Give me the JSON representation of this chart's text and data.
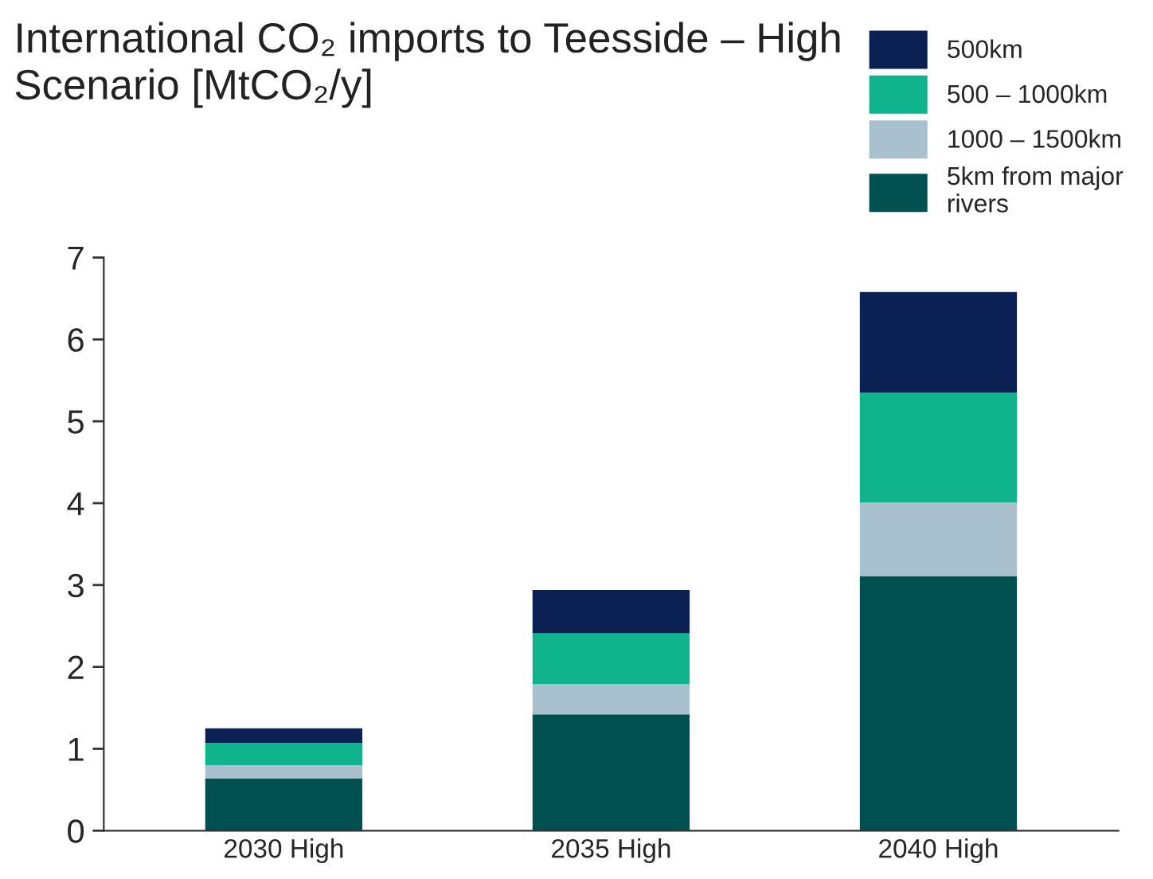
{
  "chart_data": {
    "type": "bar",
    "title": "International CO₂ imports to Teesside – High Scenario [MtCO₂/y]",
    "categories": [
      "2030 High",
      "2035 High",
      "2040 High"
    ],
    "stacked": true,
    "series": [
      {
        "name": "5km from major rivers",
        "color": "#005052",
        "values": [
          0.64,
          1.42,
          3.11
        ]
      },
      {
        "name": "1000 – 1500km",
        "color": "#a9c1cf",
        "values": [
          0.16,
          0.37,
          0.9
        ]
      },
      {
        "name": "500 – 1000km",
        "color": "#10b48c",
        "values": [
          0.27,
          0.62,
          1.34
        ]
      },
      {
        "name": "500km",
        "color": "#0b2154",
        "values": [
          0.18,
          0.53,
          1.23
        ]
      }
    ],
    "ylim": [
      0,
      7
    ],
    "yticks": [
      0,
      1,
      2,
      3,
      4,
      5,
      6,
      7
    ],
    "grid": false,
    "legend": "top right"
  }
}
